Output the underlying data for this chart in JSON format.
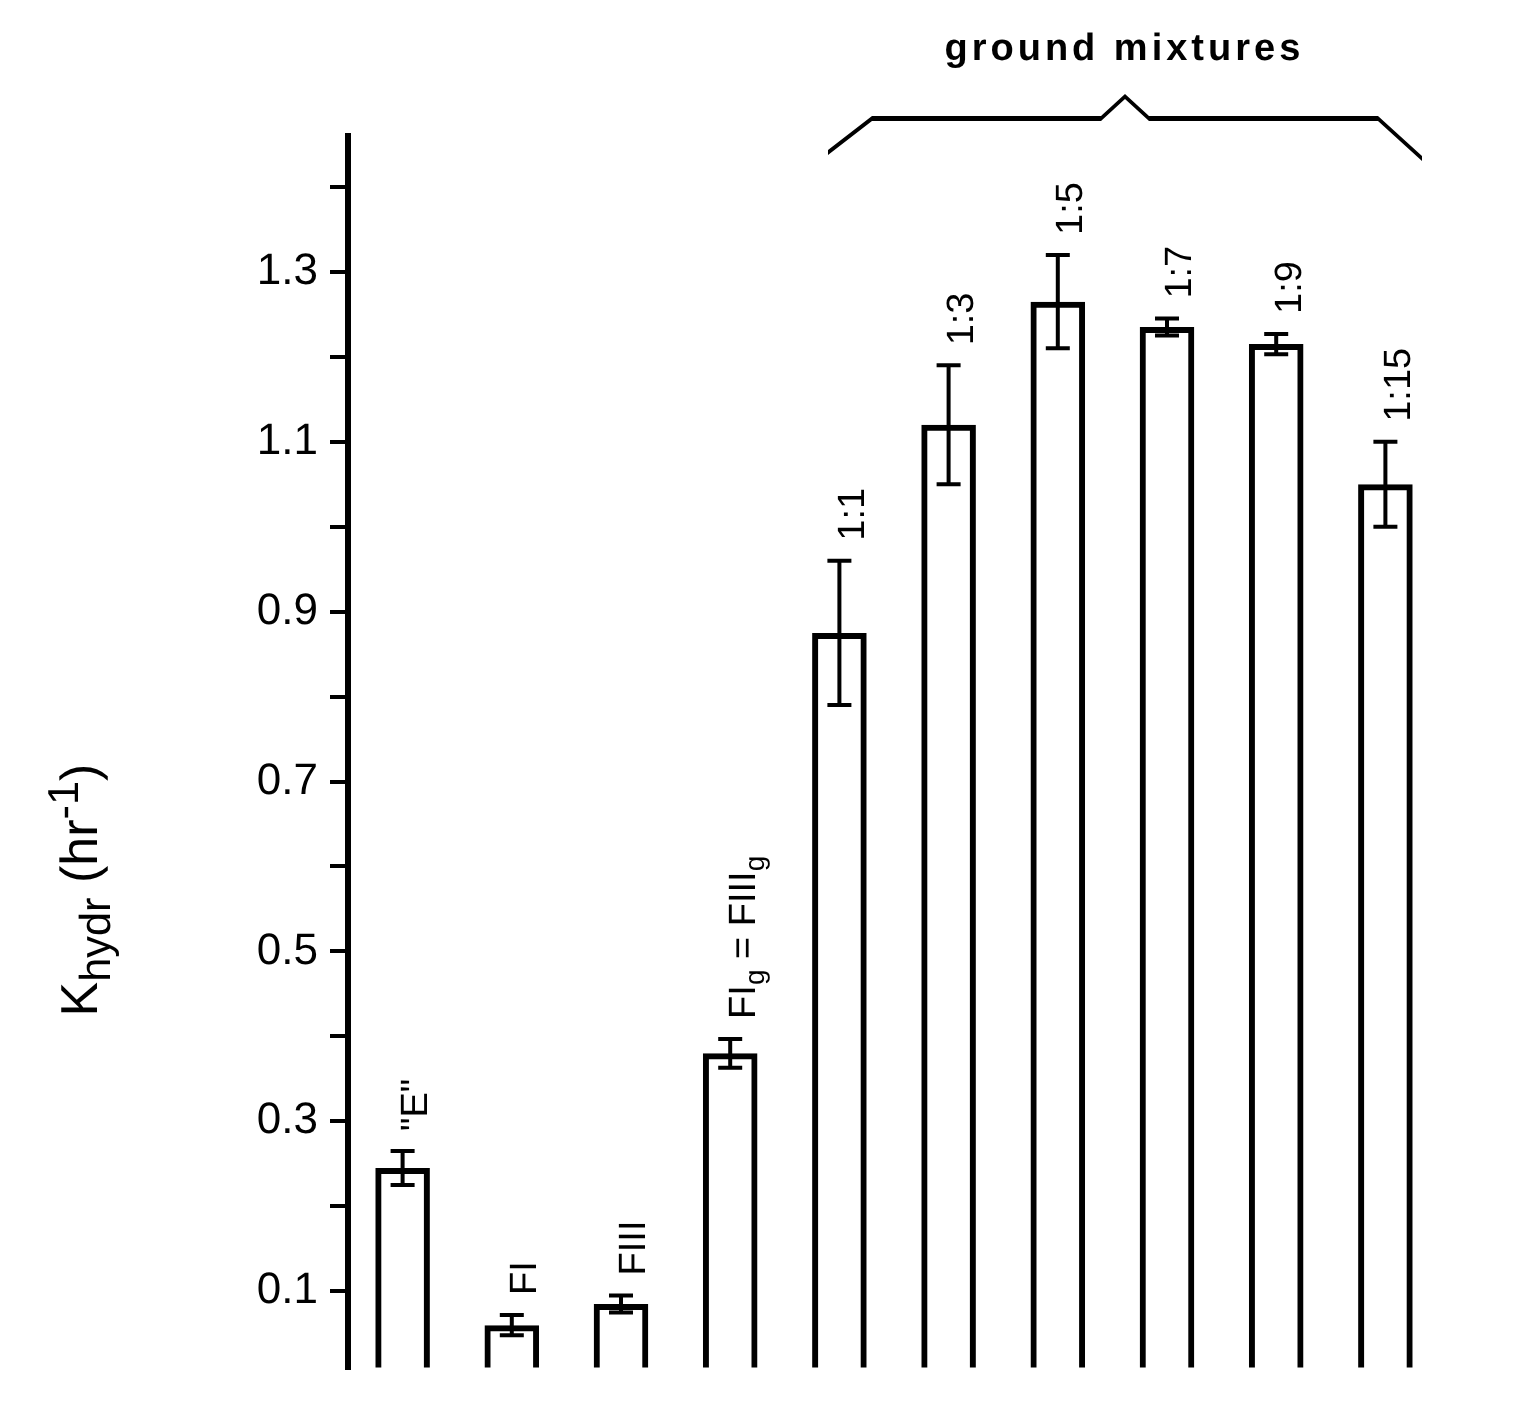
{
  "chart_data": {
    "type": "bar",
    "ylabel": "K$_{hydr}$ (hr$^{-1}$)",
    "categories": [
      "\"E\"",
      "FI",
      "FIII",
      "FI$_{g}$ = FIII$_{g}$",
      "1:1",
      "1:3",
      "1:5",
      "1:7",
      "1:9",
      "1:15"
    ],
    "values": [
      0.245,
      0.06,
      0.085,
      0.38,
      0.875,
      1.12,
      1.265,
      1.235,
      1.215,
      1.05
    ],
    "errors": [
      0.02,
      0.012,
      0.01,
      0.017,
      0.085,
      0.07,
      0.055,
      0.01,
      0.012,
      0.05
    ],
    "color": "#000000",
    "ylim": [
      0.01,
      1.46
    ],
    "yticks": [
      {
        "value": 0.1,
        "label": "0.1"
      },
      {
        "value": 0.2,
        "label": null
      },
      {
        "value": 0.3,
        "label": "0.3"
      },
      {
        "value": 0.4,
        "label": null
      },
      {
        "value": 0.5,
        "label": "0.5"
      },
      {
        "value": 0.6,
        "label": null
      },
      {
        "value": 0.7,
        "label": "0.7"
      },
      {
        "value": 0.8,
        "label": null
      },
      {
        "value": 0.9,
        "label": "0.9"
      },
      {
        "value": 1.0,
        "label": null
      },
      {
        "value": 1.1,
        "label": "1.1"
      },
      {
        "value": 1.2,
        "label": null
      },
      {
        "value": 1.3,
        "label": "1.3"
      },
      {
        "value": 1.4,
        "label": null
      }
    ],
    "tick_labels": "y",
    "grid": false,
    "legend": false,
    "annotations": [
      "ground mixtures"
    ]
  }
}
